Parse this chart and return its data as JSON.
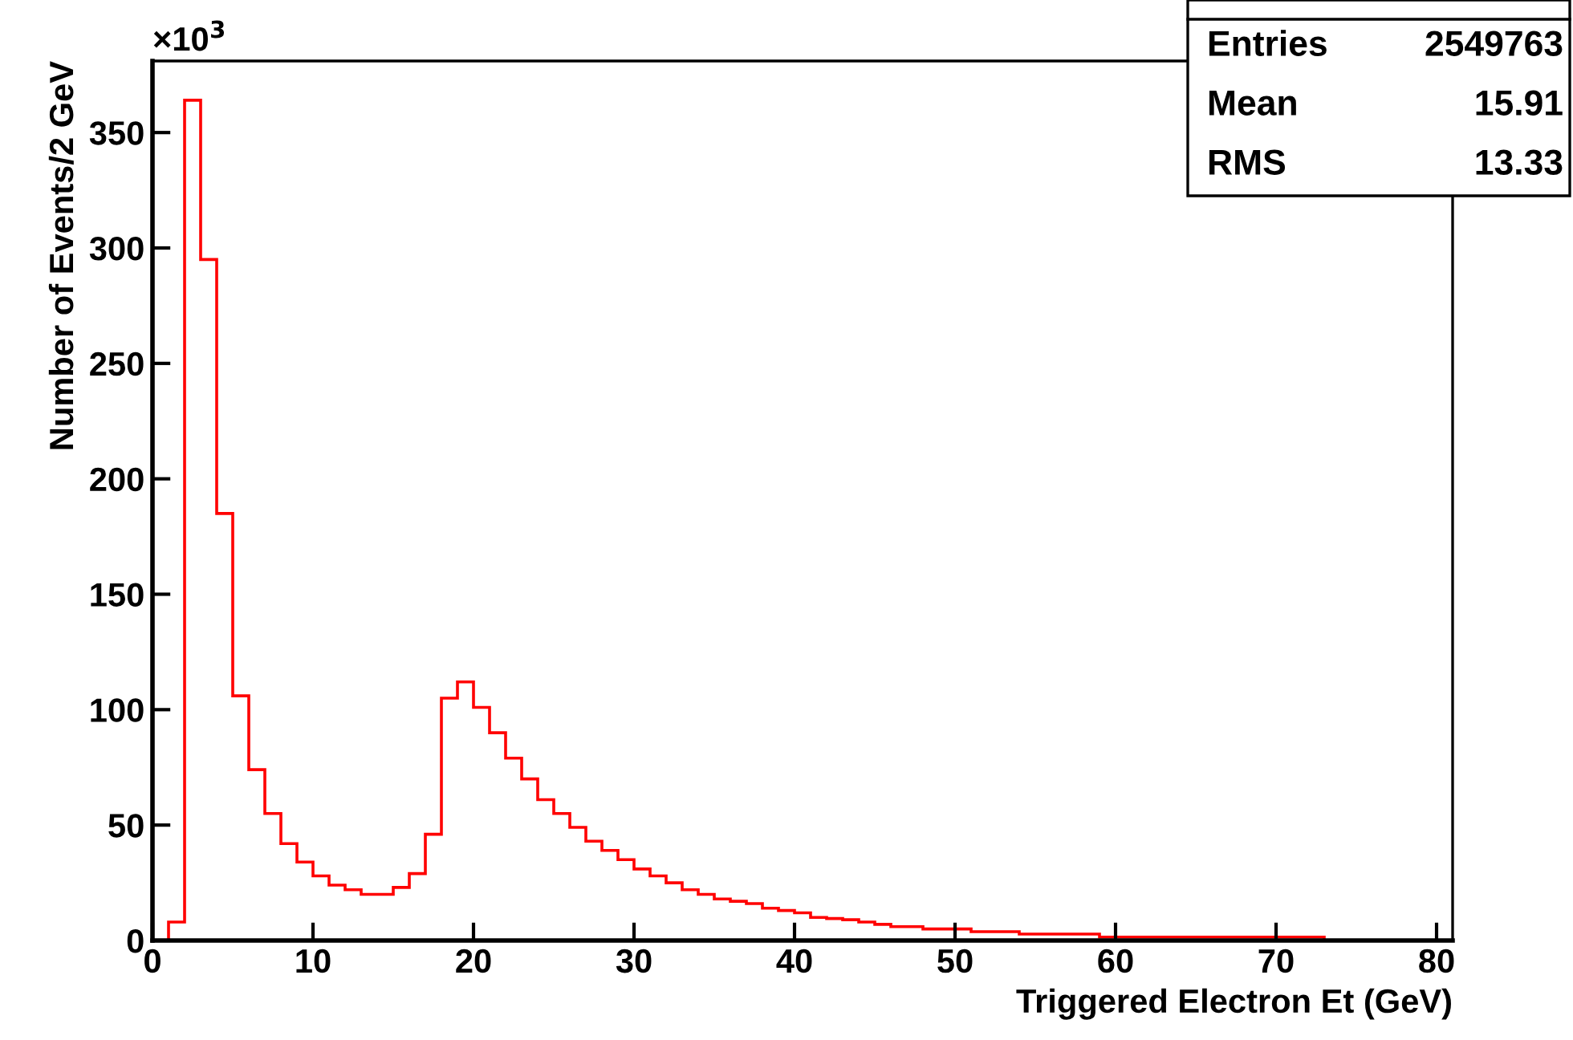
{
  "chart_data": {
    "type": "histogram",
    "xlabel": "Triggered Electron Et (GeV)",
    "ylabel": "Number of Events/2 GeV",
    "annotations": [
      "×10$^{3}$",
      "Entries",
      "2549763",
      "Mean",
      "15.91",
      "RMS",
      "13.33"
    ],
    "bins": [
      0,
      1,
      2,
      3,
      4,
      5,
      6,
      7,
      8,
      9,
      10,
      11,
      12,
      13,
      14,
      15,
      16,
      17,
      18,
      19,
      20,
      21,
      22,
      23,
      24,
      25,
      26,
      27,
      28,
      29,
      30,
      31,
      32,
      33,
      34,
      35,
      36,
      37,
      38,
      39,
      40,
      41,
      42,
      43,
      44,
      45,
      46,
      47,
      48,
      49,
      50,
      51,
      52,
      53,
      54,
      55,
      56,
      57,
      58,
      59,
      60,
      61,
      62,
      63,
      64,
      65,
      66,
      67,
      68,
      69,
      70,
      71,
      72,
      73,
      74,
      75,
      76,
      77,
      78,
      79,
      80
    ],
    "values": [
      0,
      8,
      364,
      295,
      185,
      106,
      74,
      55,
      42,
      34,
      28,
      24,
      22,
      20,
      20,
      23,
      29,
      46,
      105,
      112,
      101,
      90,
      79,
      70,
      61,
      55,
      49,
      43,
      39,
      35,
      31,
      28,
      25,
      22,
      20,
      18,
      17,
      16,
      14,
      13,
      12,
      10,
      9.5,
      9,
      8,
      7,
      6,
      6,
      5,
      5,
      5,
      3.8,
      3.8,
      3.8,
      2.8,
      2.8,
      2.8,
      2.8,
      2.8,
      1.5,
      1.5,
      1.5,
      1.5,
      1.5,
      1.5,
      1.5,
      1.5,
      1.5,
      1.5,
      1.5,
      1.5,
      1.5,
      1.5,
      0,
      0,
      0,
      0,
      0,
      0,
      0
    ],
    "color": "#ff0000",
    "xlim": [
      0,
      81
    ],
    "ylim": [
      0,
      381
    ],
    "xticks": [
      0,
      10,
      20,
      30,
      40,
      50,
      60,
      70,
      80
    ],
    "yticks": [
      0,
      50,
      100,
      150,
      200,
      250,
      300,
      350
    ]
  }
}
